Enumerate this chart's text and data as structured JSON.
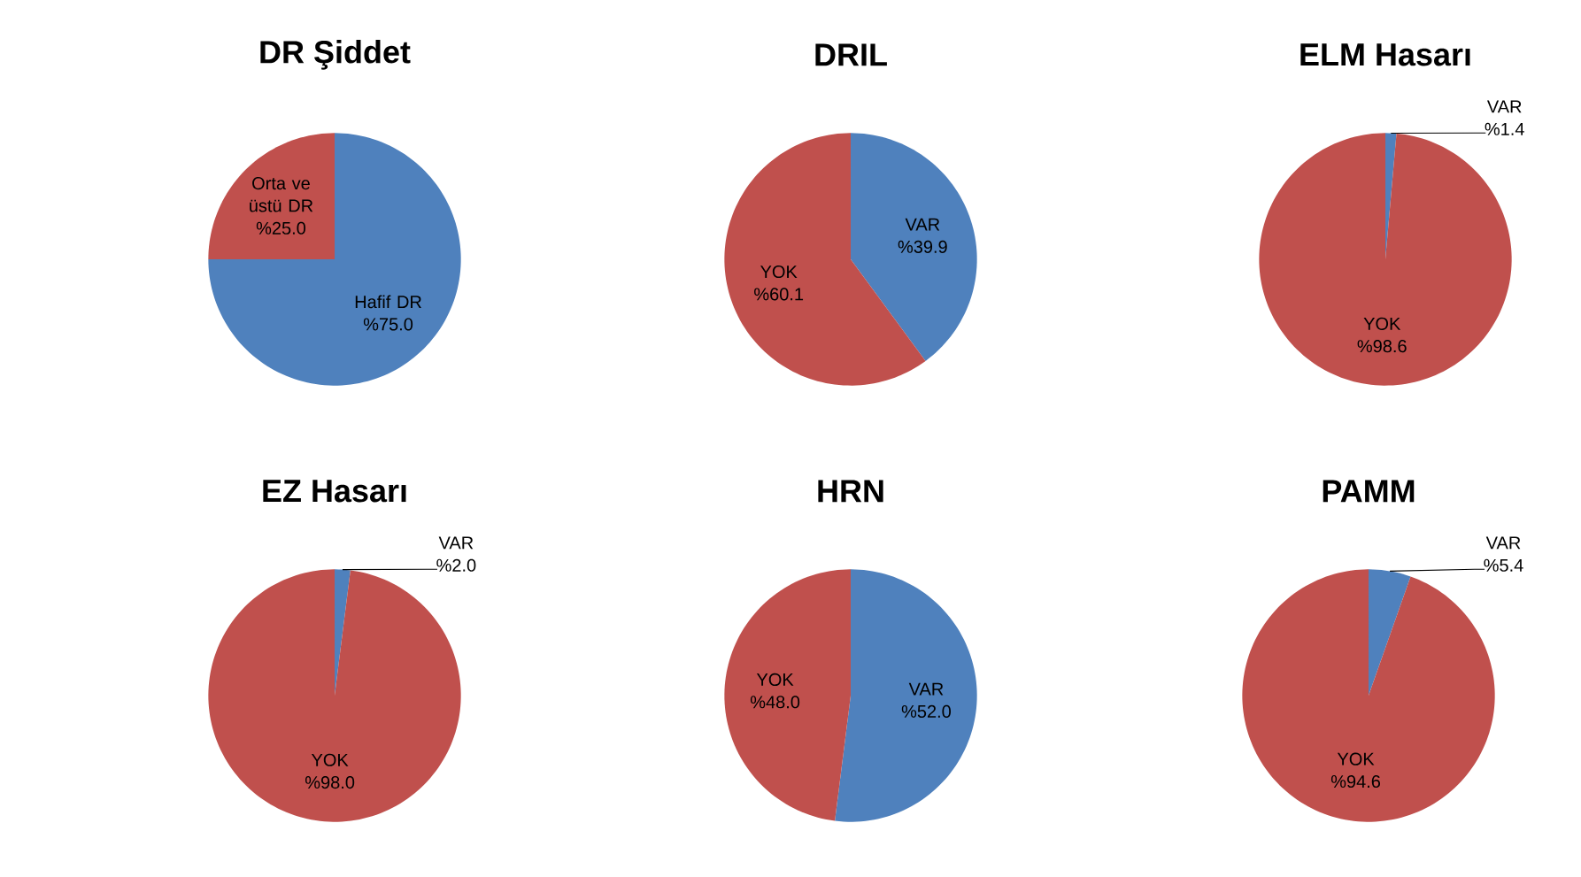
{
  "chart_data": [
    {
      "type": "pie",
      "title": "DR Şiddet",
      "categories": [
        "Hafif DR",
        "Orta ve üstü DR"
      ],
      "values": [
        75.0,
        25.0
      ],
      "colors": [
        "#4f81bd",
        "#c0504d"
      ],
      "value_labels": [
        "%75.0",
        "%25.0"
      ]
    },
    {
      "type": "pie",
      "title": "DRIL",
      "categories": [
        "VAR",
        "YOK"
      ],
      "values": [
        39.9,
        60.1
      ],
      "colors": [
        "#4f81bd",
        "#c0504d"
      ],
      "value_labels": [
        "%39.9",
        "%60.1"
      ]
    },
    {
      "type": "pie",
      "title": "ELM Hasarı",
      "categories": [
        "VAR",
        "YOK"
      ],
      "values": [
        1.4,
        98.6
      ],
      "colors": [
        "#4f81bd",
        "#c0504d"
      ],
      "value_labels": [
        "%1.4",
        "%98.6"
      ]
    },
    {
      "type": "pie",
      "title": "EZ Hasarı",
      "categories": [
        "VAR",
        "YOK"
      ],
      "values": [
        2.0,
        98.0
      ],
      "colors": [
        "#4f81bd",
        "#c0504d"
      ],
      "value_labels": [
        "%2.0",
        "%98.0"
      ]
    },
    {
      "type": "pie",
      "title": "HRN",
      "categories": [
        "VAR",
        "YOK"
      ],
      "values": [
        52.0,
        48.0
      ],
      "colors": [
        "#4f81bd",
        "#c0504d"
      ],
      "value_labels": [
        "%52.0",
        "%48.0"
      ]
    },
    {
      "type": "pie",
      "title": "PAMM",
      "categories": [
        "VAR",
        "YOK"
      ],
      "values": [
        5.4,
        94.6
      ],
      "colors": [
        "#4f81bd",
        "#c0504d"
      ],
      "value_labels": [
        "%5.4",
        "%94.6"
      ]
    }
  ]
}
